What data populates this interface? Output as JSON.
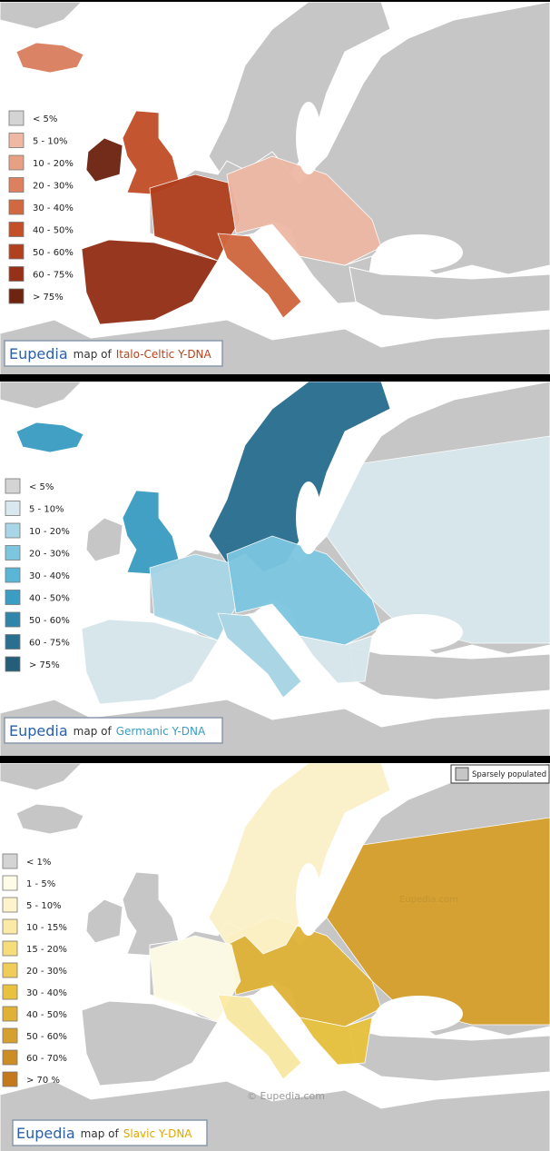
{
  "maps": [
    {
      "brand": "Eupedia",
      "title_connector": "map of",
      "title_subject": "Italo-Celtic Y-DNA",
      "legend": [
        "< 5%",
        "5 - 10%",
        "10 - 20%",
        "20 - 30%",
        "30 - 40%",
        "40 - 50%",
        "50 - 60%",
        "60 - 75%",
        "> 75%"
      ]
    },
    {
      "brand": "Eupedia",
      "title_connector": "map of",
      "title_subject": "Germanic Y-DNA",
      "legend": [
        "< 5%",
        "5 - 10%",
        "10 - 20%",
        "20 - 30%",
        "30 - 40%",
        "40 - 50%",
        "50 - 60%",
        "60 - 75%",
        "> 75%"
      ]
    },
    {
      "brand": "Eupedia",
      "title_connector": "map of",
      "title_subject": "Slavic Y-DNA",
      "legend": [
        "< 1%",
        "1 - 5%",
        "5 - 10%",
        "10 - 15%",
        "15 - 20%",
        "20 - 30%",
        "30 - 40%",
        "40 - 50%",
        "50 - 60%",
        "60 - 70%",
        "> 70 %"
      ],
      "sparsely_populated_label": "Sparsely populated",
      "watermark": "Eupedia.com",
      "copyright": "© Eupedia.com"
    }
  ]
}
